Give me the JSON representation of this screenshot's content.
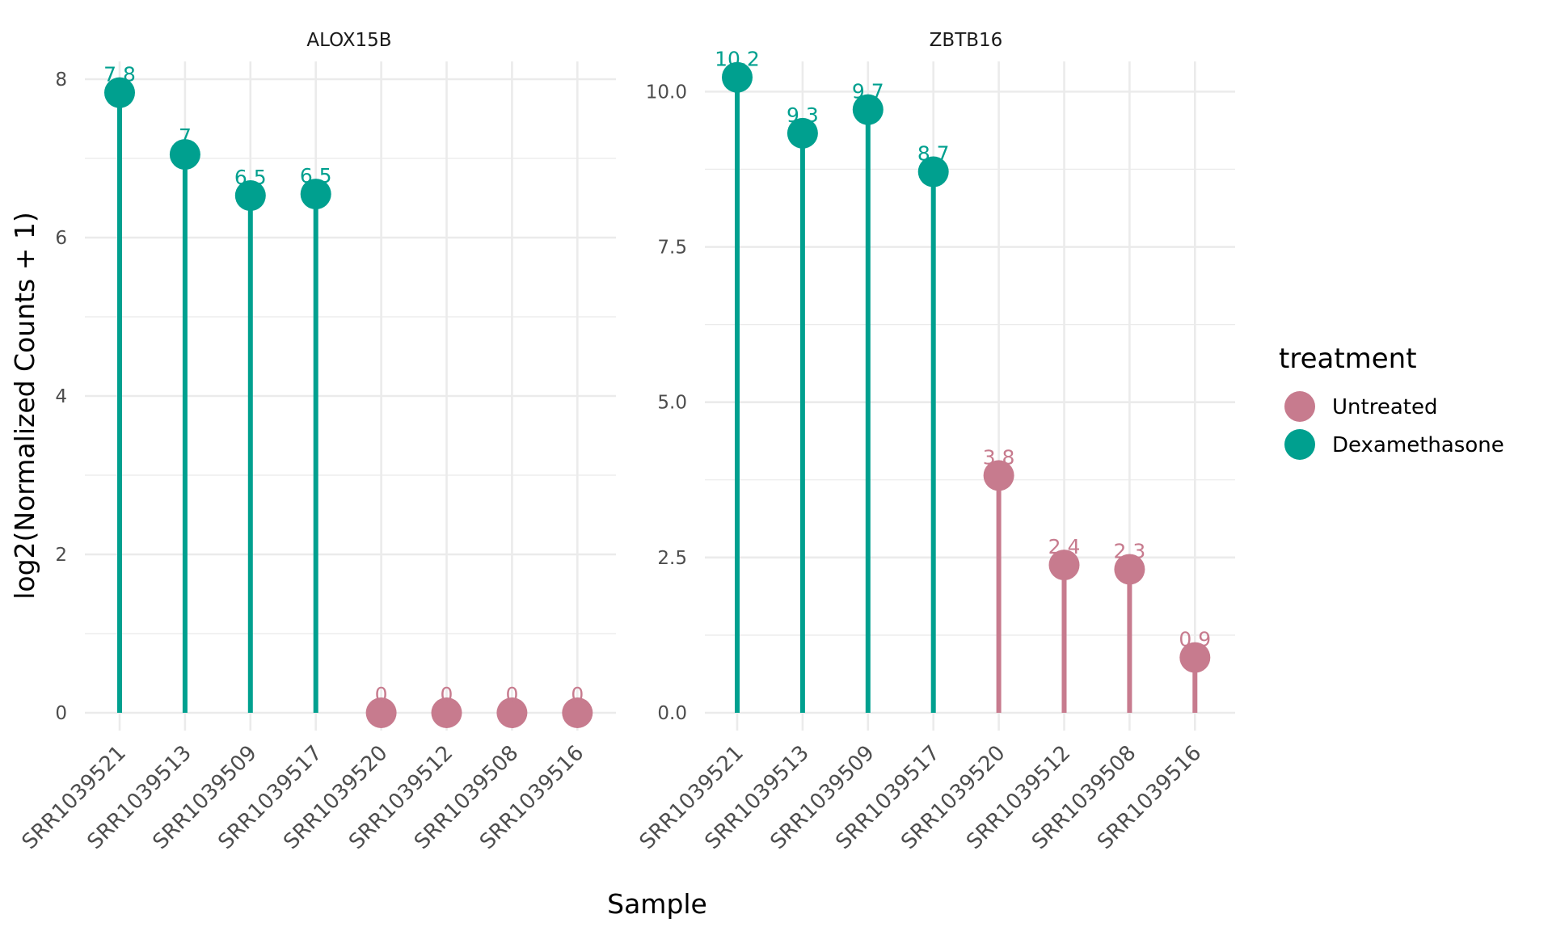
{
  "figure": {
    "ylabel": "log2(Normalized Counts + 1)",
    "xlabel": "Sample"
  },
  "colors": {
    "Untreated": "#C77B8E",
    "Dexamethasone": "#00A08F",
    "grid": "#EBEBEB",
    "text": "#4D4D4D"
  },
  "legend": {
    "title": "treatment",
    "position": "right",
    "items": [
      {
        "label": "Untreated",
        "color": "#C77B8E"
      },
      {
        "label": "Dexamethasone",
        "color": "#00A08F"
      }
    ]
  },
  "chart_data": [
    {
      "type": "lollipop",
      "title": "ALOX15B",
      "xlabel": "Sample",
      "ylabel": "log2(Normalized Counts + 1)",
      "ylim": [
        0,
        8
      ],
      "yticks": [
        0,
        2,
        4,
        6,
        8
      ],
      "ytick_labels": [
        "0",
        "2",
        "4",
        "6",
        "8"
      ],
      "categories": [
        "SRR1039521",
        "SRR1039513",
        "SRR1039509",
        "SRR1039517",
        "SRR1039520",
        "SRR1039512",
        "SRR1039508",
        "SRR1039516"
      ],
      "values": [
        7.83,
        7.05,
        6.53,
        6.55,
        0,
        0,
        0,
        0
      ],
      "labels": [
        "7.8",
        "7",
        "6.5",
        "6.5",
        "0",
        "0",
        "0",
        "0"
      ],
      "groups": [
        "Dexamethasone",
        "Dexamethasone",
        "Dexamethasone",
        "Dexamethasone",
        "Untreated",
        "Untreated",
        "Untreated",
        "Untreated"
      ]
    },
    {
      "type": "lollipop",
      "title": "ZBTB16",
      "xlabel": "Sample",
      "ylabel": "log2(Normalized Counts + 1)",
      "ylim": [
        0,
        10.2
      ],
      "yticks": [
        0,
        2.5,
        5,
        7.5,
        10
      ],
      "ytick_labels": [
        "0.0",
        "2.5",
        "5.0",
        "7.5",
        "10.0"
      ],
      "categories": [
        "SRR1039521",
        "SRR1039513",
        "SRR1039509",
        "SRR1039517",
        "SRR1039520",
        "SRR1039512",
        "SRR1039508",
        "SRR1039516"
      ],
      "values": [
        10.23,
        9.33,
        9.71,
        8.71,
        3.82,
        2.38,
        2.31,
        0.89
      ],
      "labels": [
        "10.2",
        "9.3",
        "9.7",
        "8.7",
        "3.8",
        "2.4",
        "2.3",
        "0.9"
      ],
      "groups": [
        "Dexamethasone",
        "Dexamethasone",
        "Dexamethasone",
        "Dexamethasone",
        "Untreated",
        "Untreated",
        "Untreated",
        "Untreated"
      ]
    }
  ]
}
